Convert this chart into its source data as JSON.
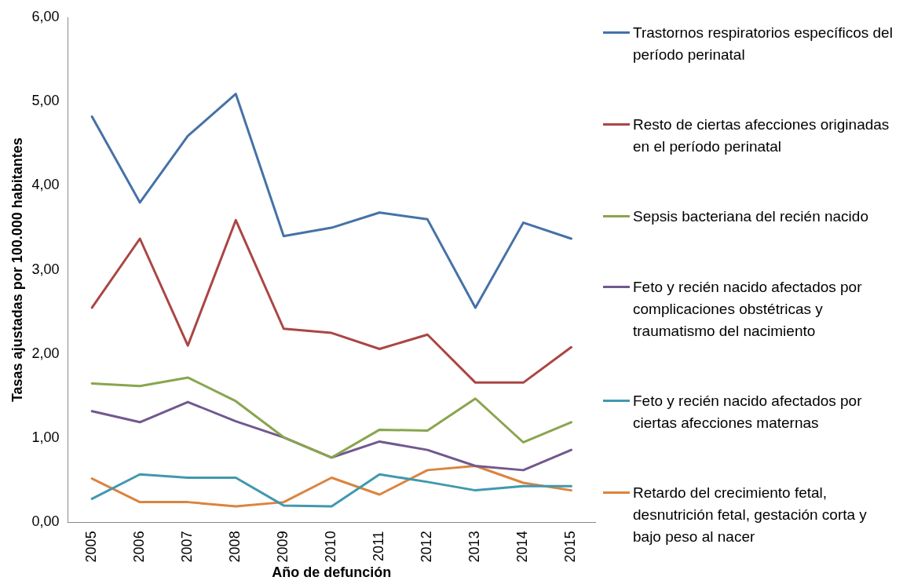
{
  "chart_data": {
    "type": "line",
    "xlabel": "Año de defunción",
    "ylabel": "Tasas ajustadas por 100.000 habitantes",
    "categories": [
      "2005",
      "2006",
      "2007",
      "2008",
      "2009",
      "2010",
      "2011",
      "2012",
      "2013",
      "2014",
      "2015"
    ],
    "ylim": [
      0,
      6
    ],
    "yticks": [
      {
        "value": 0,
        "label": "0,00"
      },
      {
        "value": 1,
        "label": "1,00"
      },
      {
        "value": 2,
        "label": "2,00"
      },
      {
        "value": 3,
        "label": "3,00"
      },
      {
        "value": 4,
        "label": "4,00"
      },
      {
        "value": 5,
        "label": "5,00"
      },
      {
        "value": 6,
        "label": "6,00"
      }
    ],
    "grid": false,
    "legend": "right",
    "marker": "none",
    "line_style": "solid",
    "series": [
      {
        "name": "Trastornos respiratorios específicos del período perinatal",
        "color": "#4572a7",
        "values": [
          4.82,
          3.8,
          4.59,
          5.09,
          3.4,
          3.5,
          3.68,
          3.6,
          2.55,
          3.56,
          3.37
        ]
      },
      {
        "name": "Resto de ciertas afecciones originadas en el período perinatal",
        "color": "#aa4643",
        "values": [
          2.55,
          3.37,
          2.1,
          3.59,
          2.3,
          2.25,
          2.06,
          2.23,
          1.66,
          1.66,
          2.08
        ]
      },
      {
        "name": "Sepsis bacteriana del recién nacido",
        "color": "#89a54e",
        "values": [
          1.65,
          1.62,
          1.72,
          1.44,
          1.01,
          0.77,
          1.1,
          1.09,
          1.47,
          0.95,
          1.19
        ]
      },
      {
        "name": "Feto y recién nacido afectados por complicaciones obstétricas y traumatismo del nacimiento",
        "color": "#71588f",
        "values": [
          1.32,
          1.19,
          1.43,
          1.2,
          1.01,
          0.77,
          0.96,
          0.86,
          0.67,
          0.62,
          0.86
        ]
      },
      {
        "name": "Feto y recién nacido afectados por ciertas afecciones maternas",
        "color": "#4198af",
        "values": [
          0.28,
          0.57,
          0.53,
          0.53,
          0.2,
          0.19,
          0.57,
          0.48,
          0.38,
          0.43,
          0.43
        ]
      },
      {
        "name": "Retardo del crecimiento fetal, desnutrición fetal, gestación corta y bajo peso al nacer",
        "color": "#db843d",
        "values": [
          0.52,
          0.24,
          0.24,
          0.19,
          0.24,
          0.53,
          0.33,
          0.62,
          0.67,
          0.47,
          0.38
        ]
      }
    ]
  }
}
